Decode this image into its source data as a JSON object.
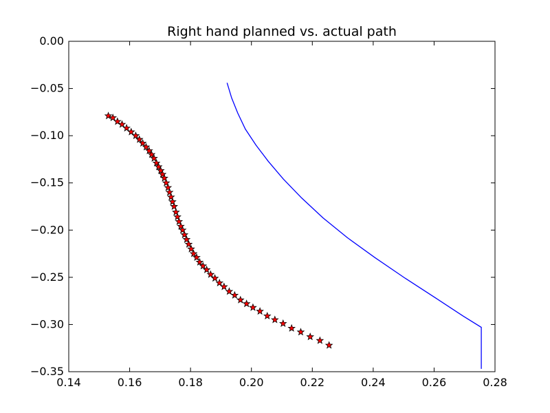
{
  "chart_data": {
    "type": "line",
    "title": "Right hand planned vs. actual path",
    "xlabel": "",
    "ylabel": "",
    "xlim": [
      0.14,
      0.28
    ],
    "ylim": [
      -0.35,
      0.0
    ],
    "grid": false,
    "x_ticks": [
      {
        "value": 0.14,
        "label": "0.14"
      },
      {
        "value": 0.16,
        "label": "0.16"
      },
      {
        "value": 0.18,
        "label": "0.18"
      },
      {
        "value": 0.2,
        "label": "0.20"
      },
      {
        "value": 0.22,
        "label": "0.22"
      },
      {
        "value": 0.24,
        "label": "0.24"
      },
      {
        "value": 0.26,
        "label": "0.26"
      },
      {
        "value": 0.28,
        "label": "0.28"
      }
    ],
    "y_ticks": [
      {
        "value": 0.0,
        "label": "0.00"
      },
      {
        "value": -0.05,
        "label": "−0.05"
      },
      {
        "value": -0.1,
        "label": "−0.10"
      },
      {
        "value": -0.15,
        "label": "−0.15"
      },
      {
        "value": -0.2,
        "label": "−0.20"
      },
      {
        "value": -0.25,
        "label": "−0.25"
      },
      {
        "value": -0.3,
        "label": "−0.30"
      },
      {
        "value": -0.35,
        "label": "−0.35"
      }
    ],
    "series": [
      {
        "style": "line",
        "color": "#0000ff",
        "points": [
          [
            0.192,
            -0.044
          ],
          [
            0.1935,
            -0.06
          ],
          [
            0.1955,
            -0.076
          ],
          [
            0.198,
            -0.093
          ],
          [
            0.2015,
            -0.11
          ],
          [
            0.2055,
            -0.127
          ],
          [
            0.2105,
            -0.146
          ],
          [
            0.2165,
            -0.166
          ],
          [
            0.2235,
            -0.187
          ],
          [
            0.2315,
            -0.208
          ],
          [
            0.2405,
            -0.229
          ],
          [
            0.2505,
            -0.251
          ],
          [
            0.2615,
            -0.274
          ],
          [
            0.2695,
            -0.291
          ],
          [
            0.2755,
            -0.303
          ],
          [
            0.2755,
            -0.347
          ]
        ]
      },
      {
        "style": "markers",
        "marker": "star",
        "color": "#ff0000",
        "edge_color": "#000000",
        "points": [
          [
            0.153,
            -0.079
          ],
          [
            0.1545,
            -0.081
          ],
          [
            0.156,
            -0.085
          ],
          [
            0.1575,
            -0.088
          ],
          [
            0.159,
            -0.092
          ],
          [
            0.1605,
            -0.096
          ],
          [
            0.162,
            -0.1
          ],
          [
            0.1632,
            -0.104
          ],
          [
            0.1643,
            -0.108
          ],
          [
            0.1654,
            -0.112
          ],
          [
            0.1664,
            -0.116
          ],
          [
            0.1672,
            -0.12
          ],
          [
            0.168,
            -0.124
          ],
          [
            0.1688,
            -0.129
          ],
          [
            0.1695,
            -0.133
          ],
          [
            0.1702,
            -0.137
          ],
          [
            0.1708,
            -0.141
          ],
          [
            0.1714,
            -0.145
          ],
          [
            0.172,
            -0.15
          ],
          [
            0.1726,
            -0.155
          ],
          [
            0.1731,
            -0.16
          ],
          [
            0.1736,
            -0.165
          ],
          [
            0.1741,
            -0.17
          ],
          [
            0.1746,
            -0.175
          ],
          [
            0.1752,
            -0.181
          ],
          [
            0.1757,
            -0.186
          ],
          [
            0.1762,
            -0.191
          ],
          [
            0.1768,
            -0.196
          ],
          [
            0.1774,
            -0.2
          ],
          [
            0.178,
            -0.205
          ],
          [
            0.1787,
            -0.21
          ],
          [
            0.1794,
            -0.215
          ],
          [
            0.1802,
            -0.22
          ],
          [
            0.181,
            -0.225
          ],
          [
            0.182,
            -0.229
          ],
          [
            0.183,
            -0.234
          ],
          [
            0.1841,
            -0.238
          ],
          [
            0.1853,
            -0.242
          ],
          [
            0.1866,
            -0.247
          ],
          [
            0.188,
            -0.251
          ],
          [
            0.1895,
            -0.256
          ],
          [
            0.191,
            -0.26
          ],
          [
            0.1927,
            -0.265
          ],
          [
            0.1945,
            -0.269
          ],
          [
            0.1964,
            -0.274
          ],
          [
            0.1984,
            -0.278
          ],
          [
            0.2005,
            -0.282
          ],
          [
            0.2028,
            -0.286
          ],
          [
            0.2052,
            -0.291
          ],
          [
            0.2077,
            -0.295
          ],
          [
            0.2104,
            -0.299
          ],
          [
            0.2132,
            -0.304
          ],
          [
            0.2162,
            -0.308
          ],
          [
            0.2193,
            -0.313
          ],
          [
            0.2225,
            -0.317
          ],
          [
            0.2255,
            -0.322
          ]
        ]
      }
    ]
  }
}
